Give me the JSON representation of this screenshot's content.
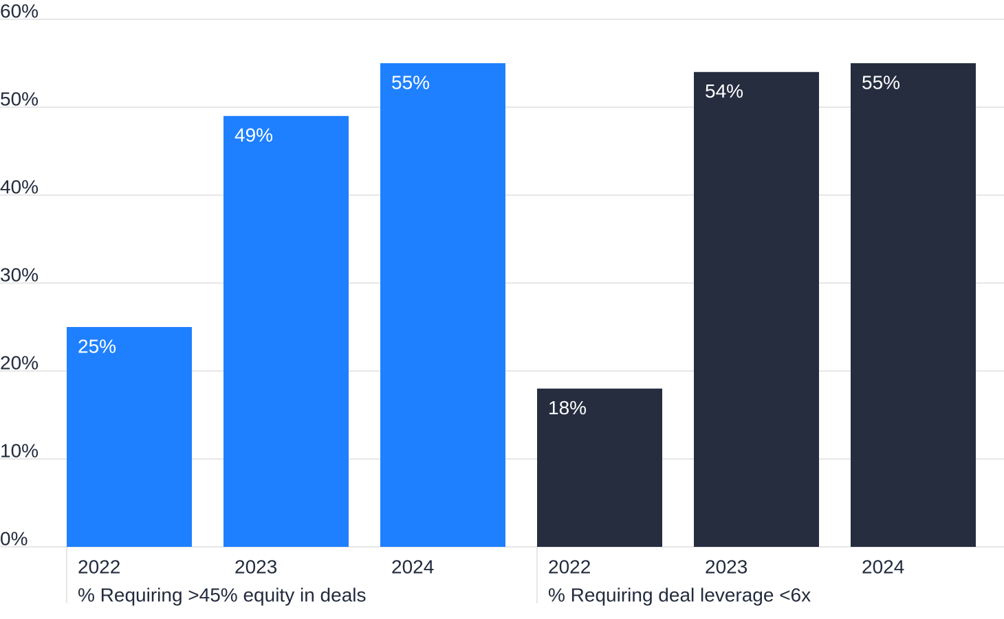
{
  "chart_data": {
    "type": "bar",
    "groups": [
      {
        "label": "% Requiring >45% equity in deals",
        "color": "#1f80ff",
        "categories": [
          "2022",
          "2023",
          "2024"
        ],
        "values": [
          25,
          49,
          55
        ],
        "value_labels": [
          "25%",
          "49%",
          "55%"
        ]
      },
      {
        "label": "% Requiring deal leverage <6x",
        "color": "#252d3f",
        "categories": [
          "2022",
          "2023",
          "2024"
        ],
        "values": [
          18,
          54,
          55
        ],
        "value_labels": [
          "18%",
          "54%",
          "55%"
        ]
      }
    ],
    "ylim": [
      0,
      60
    ],
    "yticks": [
      {
        "value": 0,
        "label": "0%"
      },
      {
        "value": 10,
        "label": "10%"
      },
      {
        "value": 20,
        "label": "20%"
      },
      {
        "value": 30,
        "label": "30%"
      },
      {
        "value": 40,
        "label": "40%"
      },
      {
        "value": 50,
        "label": "50%"
      },
      {
        "value": 60,
        "label": "60%"
      }
    ],
    "grid": true
  }
}
